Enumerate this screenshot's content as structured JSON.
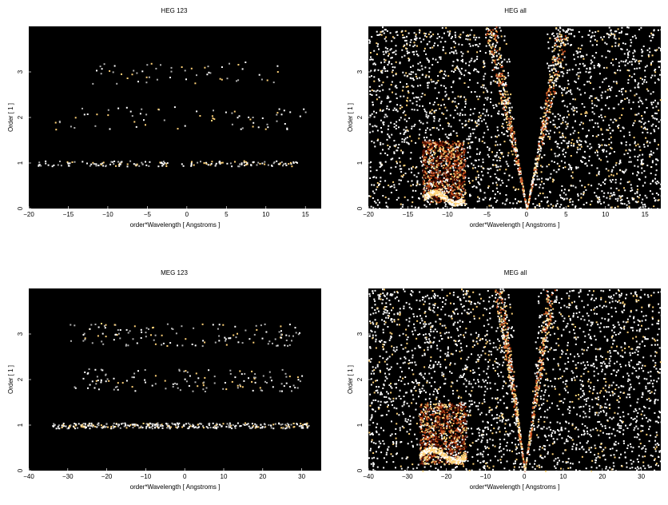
{
  "colors": {
    "background": "#000000",
    "low": "#5a0f00",
    "mid": "#c8501e",
    "high": "#ffd278",
    "max": "#ffffff"
  },
  "chart_data": [
    {
      "type": "heatmap",
      "title": "HEG 123",
      "xlabel": "order*Wavelength [ Angstroms ]",
      "ylabel": "Order [ 1 ]",
      "xlim": [
        -20,
        17
      ],
      "ylim": [
        0,
        4
      ],
      "xticks": [
        -20,
        -15,
        -10,
        -5,
        0,
        5,
        10,
        15
      ],
      "yticks": [
        0,
        1,
        2,
        3
      ],
      "xtick_labels": [
        "−20",
        "−15",
        "−10",
        "−5",
        "0",
        "5",
        "10",
        "15"
      ],
      "ytick_labels": [
        "0",
        "1",
        "2",
        "3"
      ],
      "features": [
        {
          "kind": "order_band",
          "order": 1,
          "xmin": -19,
          "xmax": 14,
          "max_intensity": 1.0
        },
        {
          "kind": "order_band",
          "order": 2,
          "xmin": -17,
          "xmax": 15,
          "max_intensity": 0.8
        },
        {
          "kind": "order_band",
          "order": 3,
          "xmin": -12,
          "xmax": 13,
          "max_intensity": 0.7
        }
      ]
    },
    {
      "type": "heatmap",
      "title": "HEG all",
      "xlabel": "order*Wavelength [ Angstroms ]",
      "ylabel": "Order [ 1 ]",
      "xlim": [
        -20,
        17
      ],
      "ylim": [
        0,
        4
      ],
      "xticks": [
        -20,
        -15,
        -10,
        -5,
        0,
        5,
        10,
        15
      ],
      "yticks": [
        0,
        1,
        2,
        3
      ],
      "xtick_labels": [
        "−20",
        "−15",
        "−10",
        "−5",
        "0",
        "5",
        "10",
        "15"
      ],
      "ytick_labels": [
        "0",
        "1",
        "2",
        "3"
      ],
      "features": [
        {
          "kind": "scatter_background",
          "xmin": -20,
          "xmax": 17,
          "ymin": 0,
          "ymax": 4,
          "vwidth": 4.0
        },
        {
          "kind": "dense_block",
          "xmin": -13.2,
          "xmax": -7.8,
          "ymin": 0.15,
          "ymax": 1.5
        },
        {
          "kind": "bright_ridge",
          "xmin": -13,
          "xmax": -8,
          "y": 0.25
        },
        {
          "kind": "diagonal_wedge",
          "xmin": -4.8,
          "xmax": 4.8,
          "ymax": 4
        }
      ]
    },
    {
      "type": "heatmap",
      "title": "MEG 123",
      "xlabel": "order*Wavelength [ Angstroms ]",
      "ylabel": "Order [ 1 ]",
      "xlim": [
        -40,
        35
      ],
      "ylim": [
        0,
        4
      ],
      "xticks": [
        -40,
        -30,
        -20,
        -10,
        0,
        10,
        20,
        30
      ],
      "yticks": [
        0,
        1,
        2,
        3
      ],
      "xtick_labels": [
        "−40",
        "−30",
        "−20",
        "−10",
        "0",
        "10",
        "20",
        "30"
      ],
      "ytick_labels": [
        "0",
        "1",
        "2",
        "3"
      ],
      "features": [
        {
          "kind": "order_band",
          "order": 1,
          "xmin": -34,
          "xmax": 32,
          "max_intensity": 1.0
        },
        {
          "kind": "order_band",
          "order": 2,
          "xmin": -30,
          "xmax": 30,
          "max_intensity": 0.8
        },
        {
          "kind": "order_band",
          "order": 3,
          "xmin": -30,
          "xmax": 30,
          "max_intensity": 0.7
        }
      ]
    },
    {
      "type": "heatmap",
      "title": "MEG all",
      "xlabel": "order*Wavelength [ Angstroms ]",
      "ylabel": "Order [ 1 ]",
      "xlim": [
        -40,
        35
      ],
      "ylim": [
        0,
        4
      ],
      "xticks": [
        -40,
        -30,
        -20,
        -10,
        0,
        10,
        20,
        30
      ],
      "yticks": [
        0,
        1,
        2,
        3
      ],
      "xtick_labels": [
        "−40",
        "−30",
        "−20",
        "−10",
        "0",
        "10",
        "20",
        "30"
      ],
      "ytick_labels": [
        "0",
        "1",
        "2",
        "3"
      ],
      "features": [
        {
          "kind": "scatter_background",
          "xmin": -40,
          "xmax": 35,
          "ymin": 0,
          "ymax": 4,
          "vwidth": 6.0
        },
        {
          "kind": "dense_block",
          "xmin": -27,
          "xmax": -15,
          "ymin": 0.15,
          "ymax": 1.5
        },
        {
          "kind": "bright_ridge",
          "xmin": -27,
          "xmax": -15,
          "y": 0.35
        },
        {
          "kind": "diagonal_wedge",
          "xmin": -7,
          "xmax": 7,
          "ymax": 4
        }
      ]
    }
  ]
}
